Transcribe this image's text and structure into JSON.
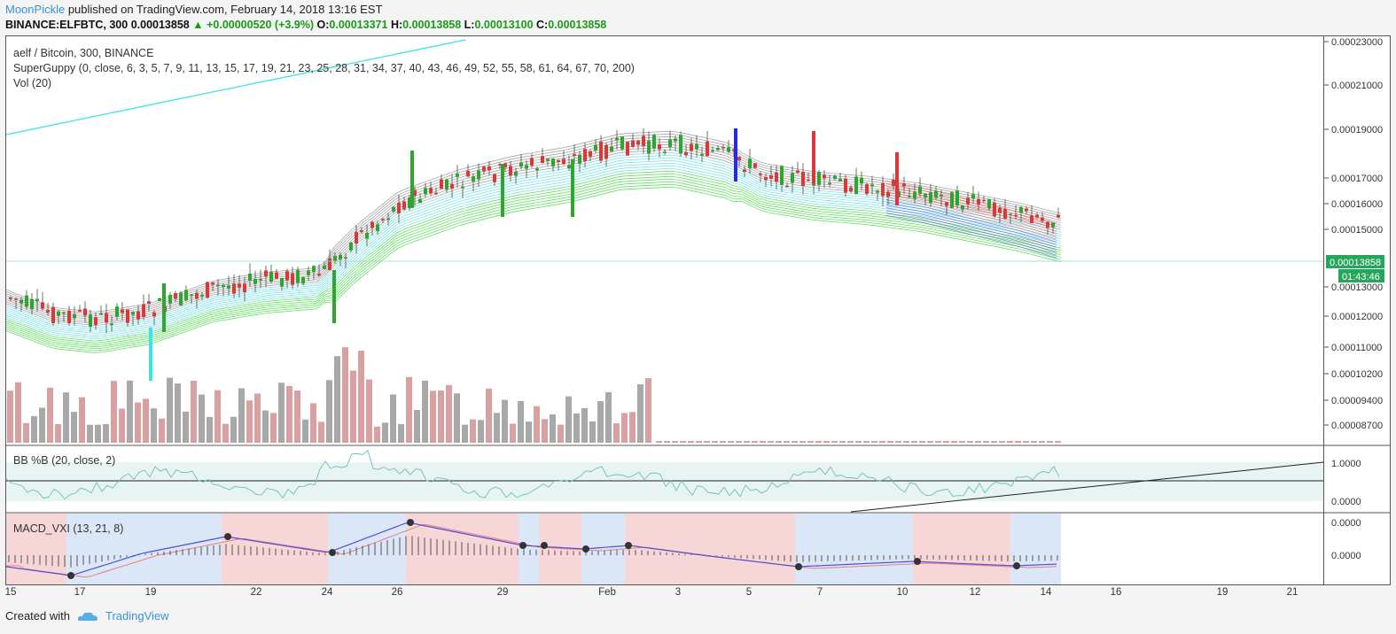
{
  "header": {
    "author": "MoonPickle",
    "published_text": "published on TradingView.com, February 14, 2018 13:16 EST",
    "symbol": "BINANCE:ELFBTC, 300",
    "last": "0.00013858",
    "change": "+0.00000520 (+3.9%)",
    "open_label": "O:",
    "open": "0.00013371",
    "high_label": "H:",
    "high": "0.00013858",
    "low_label": "L:",
    "low": "0.00013100",
    "close_label": "C:",
    "close": "0.00013858"
  },
  "legends": {
    "main_title": "aelf / Bitcoin, 300, BINANCE",
    "guppy": "SuperGuppy (0, close, 6, 3, 5, 7, 9, 11, 13, 15, 17, 19, 21, 23, 25, 28, 31, 34, 37, 40, 43, 46, 49, 52, 55, 58, 61, 64, 67, 70, 200)",
    "vol": "Vol (20)",
    "bb": "BB %B (20, close, 2)",
    "macd": "MACD_VXI (13, 21, 8)"
  },
  "price_axis": {
    "ticks": [
      "0.00023000",
      "0.00021000",
      "0.00019000",
      "0.00017000",
      "0.00016000",
      "0.00015000",
      "0.00013000",
      "0.00012000",
      "0.00011000",
      "0.00010200",
      "0.00009400",
      "0.00008700"
    ],
    "last_price_label": "0.00013858",
    "countdown_label": "01:43:46"
  },
  "bb_axis": {
    "ticks": [
      "1.0000",
      "0.0000"
    ]
  },
  "macd_axis": {
    "ticks": [
      "0.0000",
      "0.0000"
    ]
  },
  "time_axis": {
    "ticks": [
      "15",
      "17",
      "19",
      "22",
      "24",
      "26",
      "29",
      "Feb",
      "3",
      "5",
      "7",
      "10",
      "12",
      "14",
      "16",
      "19",
      "21"
    ]
  },
  "footer": {
    "created_with": "Created with",
    "brand": "TradingView"
  },
  "colors": {
    "up": "#2ea52e",
    "down": "#d63a3a",
    "guppy_green": "#33d633",
    "guppy_gray": "#888888",
    "guppy_red": "#e84040",
    "guppy_blue": "#3a3ad8",
    "cyan_line": "#39e3e8",
    "last_price": "#26a65b"
  },
  "chart_data": {
    "type": "candlestick",
    "x": [
      "15",
      "17",
      "19",
      "22",
      "24",
      "26",
      "29",
      "Feb",
      "3",
      "5",
      "7",
      "10",
      "12",
      "14",
      "16",
      "19",
      "21"
    ],
    "last_close": 0.00013858,
    "y_ticks": [
      0.00023,
      0.00021,
      0.00019,
      0.00017,
      0.00016,
      0.00015,
      0.00013,
      0.00012,
      0.00011,
      0.000102,
      9.4e-05,
      8.7e-05
    ]
  }
}
